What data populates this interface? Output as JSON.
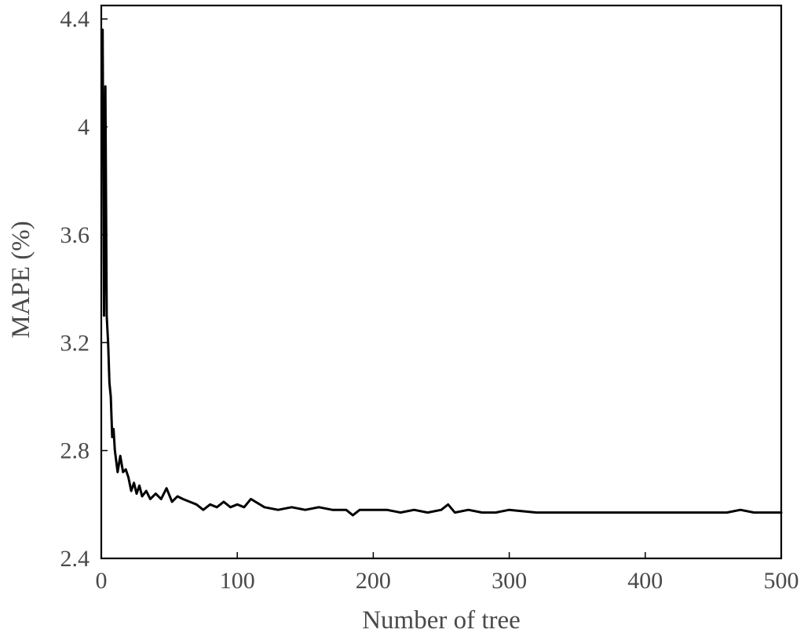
{
  "chart_data": {
    "type": "line",
    "xlabel": "Number of tree",
    "ylabel": "MAPE (%)",
    "xlim": [
      0,
      500
    ],
    "ylim": [
      2.4,
      4.45
    ],
    "x_ticks": [
      0,
      100,
      200,
      300,
      400,
      500
    ],
    "y_ticks": [
      2.4,
      2.8,
      3.2,
      3.6,
      4.0,
      4.4
    ],
    "x_tick_labels": [
      "0",
      "100",
      "200",
      "300",
      "400",
      "500"
    ],
    "y_tick_labels": [
      "2.4",
      "2.8",
      "3.2",
      "3.6",
      "4",
      "4.4"
    ],
    "grid": false,
    "series": [
      {
        "color": "#000000",
        "x": [
          1,
          2,
          3,
          4,
          5,
          6,
          7,
          8,
          9,
          10,
          12,
          14,
          16,
          18,
          20,
          22,
          24,
          26,
          28,
          30,
          33,
          36,
          40,
          44,
          48,
          52,
          56,
          60,
          65,
          70,
          75,
          80,
          85,
          90,
          95,
          100,
          105,
          110,
          120,
          130,
          140,
          150,
          160,
          170,
          180,
          185,
          190,
          200,
          210,
          220,
          230,
          240,
          250,
          255,
          260,
          270,
          280,
          290,
          300,
          320,
          340,
          360,
          380,
          400,
          420,
          440,
          460,
          470,
          480,
          490,
          500
        ],
        "values": [
          4.36,
          3.3,
          4.15,
          3.3,
          3.2,
          3.05,
          3.0,
          2.85,
          2.88,
          2.8,
          2.72,
          2.78,
          2.72,
          2.73,
          2.7,
          2.65,
          2.68,
          2.64,
          2.67,
          2.63,
          2.65,
          2.62,
          2.64,
          2.62,
          2.66,
          2.61,
          2.63,
          2.62,
          2.61,
          2.6,
          2.58,
          2.6,
          2.59,
          2.61,
          2.59,
          2.6,
          2.59,
          2.62,
          2.59,
          2.58,
          2.59,
          2.58,
          2.59,
          2.58,
          2.58,
          2.56,
          2.58,
          2.58,
          2.58,
          2.57,
          2.58,
          2.57,
          2.58,
          2.6,
          2.57,
          2.58,
          2.57,
          2.57,
          2.58,
          2.57,
          2.57,
          2.57,
          2.57,
          2.57,
          2.57,
          2.57,
          2.57,
          2.58,
          2.57,
          2.57,
          2.57
        ]
      }
    ]
  }
}
